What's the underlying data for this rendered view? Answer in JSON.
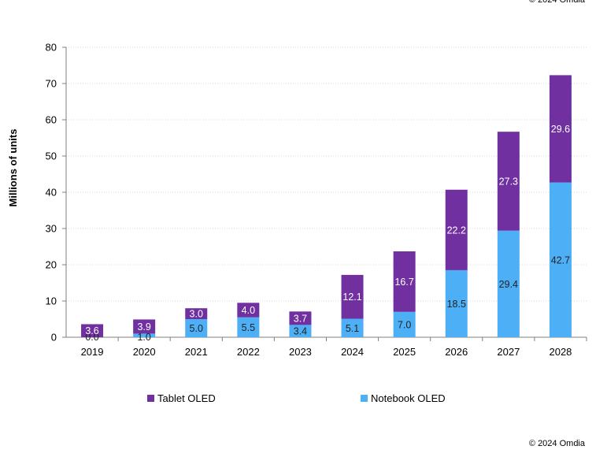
{
  "copyright": "© 2024 Omdia",
  "chart_data": {
    "type": "bar",
    "stacked": true,
    "ylabel": "Millions of units",
    "xlabel": "",
    "ylim": [
      0,
      80
    ],
    "yticks": [
      0,
      10,
      20,
      30,
      40,
      50,
      60,
      70,
      80
    ],
    "grid": true,
    "legend_position": "bottom",
    "categories": [
      "2019",
      "2020",
      "2021",
      "2022",
      "2023",
      "2024",
      "2025",
      "2026",
      "2027",
      "2028"
    ],
    "series": [
      {
        "name": "Notebook OLED",
        "color": "#4DAFF5",
        "label_color": "#222222",
        "values": [
          0.0,
          1.0,
          5.0,
          5.5,
          3.4,
          5.1,
          7.0,
          18.5,
          29.4,
          42.7
        ],
        "labels": [
          "0.0",
          "1.0",
          "5.0",
          "5.5",
          "3.4",
          "5.1",
          "7.0",
          "18.5",
          "29.4",
          "42.7"
        ]
      },
      {
        "name": "Tablet OLED",
        "color": "#7030A0",
        "label_color": "#ffffff",
        "values": [
          3.6,
          3.9,
          3.0,
          4.0,
          3.7,
          12.1,
          16.7,
          22.2,
          27.3,
          29.6
        ],
        "labels": [
          "3.6",
          "3.9",
          "3.0",
          "4.0",
          "3.7",
          "12.1",
          "16.7",
          "22.2",
          "27.3",
          "29.6"
        ]
      }
    ],
    "legend_order": [
      "Tablet OLED",
      "Notebook OLED"
    ]
  }
}
